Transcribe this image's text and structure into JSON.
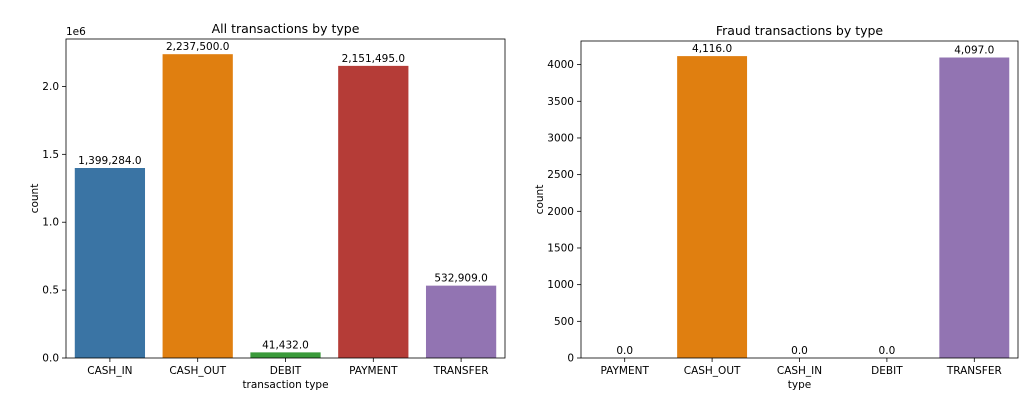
{
  "chart_data": [
    {
      "type": "bar",
      "title": "All transactions by type",
      "xlabel": "transaction type",
      "ylabel": "count",
      "offset_label": "1e6",
      "categories": [
        "CASH_IN",
        "CASH_OUT",
        "DEBIT",
        "PAYMENT",
        "TRANSFER"
      ],
      "values": [
        1399284,
        2237500,
        41432,
        2151495,
        532909
      ],
      "value_labels": [
        "1,399,284.0",
        "2,237,500.0",
        "41,432.0",
        "2,151,495.0",
        "532,909.0"
      ],
      "colors": [
        "#3a74a4",
        "#e07f10",
        "#3a9a3a",
        "#b53c37",
        "#9274b2"
      ],
      "ylim": [
        0,
        2349375
      ],
      "ytick_values": [
        0,
        500000,
        1000000,
        1500000,
        2000000
      ],
      "ytick_labels": [
        "0.0",
        "0.5",
        "1.0",
        "1.5",
        "2.0"
      ],
      "grid": false
    },
    {
      "type": "bar",
      "title": "Fraud transactions by type",
      "xlabel": "type",
      "ylabel": "count",
      "categories": [
        "PAYMENT",
        "CASH_OUT",
        "CASH_IN",
        "DEBIT",
        "TRANSFER"
      ],
      "values": [
        0,
        4116,
        0,
        0,
        4097
      ],
      "value_labels": [
        "0.0",
        "4,116.0",
        "0.0",
        "0.0",
        "4,097.0"
      ],
      "colors": [
        "#3a74a4",
        "#e07f10",
        "#3a9a3a",
        "#b53c37",
        "#9274b2"
      ],
      "ylim": [
        0,
        4322
      ],
      "ytick_values": [
        0,
        500,
        1000,
        1500,
        2000,
        2500,
        3000,
        3500,
        4000
      ],
      "ytick_labels": [
        "0",
        "500",
        "1000",
        "1500",
        "2000",
        "2500",
        "3000",
        "3500",
        "4000"
      ],
      "grid": false
    }
  ]
}
